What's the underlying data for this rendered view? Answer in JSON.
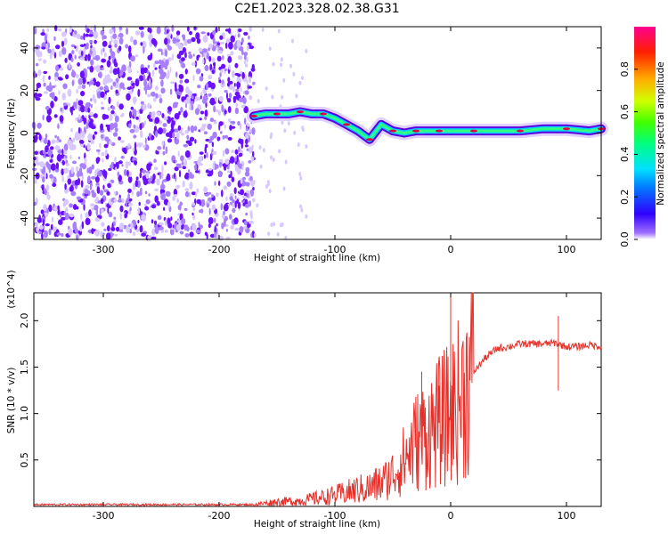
{
  "title": "C2E1.2023.328.02.38.G31",
  "colors": {
    "snr_line": "#e8302a",
    "track_outer": "#5a00e0",
    "track_inner": "#00d0ff",
    "track_core": "#e0004a",
    "noise": "#7a2cff"
  },
  "chart_data": [
    {
      "type": "heatmap",
      "title": "C2E1.2023.328.02.38.G31",
      "xlabel": "Height of straight line (km)",
      "ylabel": "Frequency (Hz)",
      "xlim": [
        -360,
        130
      ],
      "ylim": [
        -50,
        50
      ],
      "x_ticks": [
        -300,
        -200,
        -100,
        0,
        100
      ],
      "x_tick_labels": [
        "-300",
        "-200",
        "-100",
        "0",
        "100"
      ],
      "y_ticks": [
        -40,
        -20,
        0,
        20,
        40
      ],
      "y_tick_labels": [
        "-40",
        "-20",
        "0",
        "20",
        "40"
      ],
      "colorbar": {
        "label": "Normalized spectral amplitude",
        "range": [
          0,
          1
        ],
        "ticks": [
          0.0,
          0.2,
          0.4,
          0.6,
          0.8
        ],
        "tick_labels": [
          "0.0",
          "0.2",
          "0.4",
          "0.6",
          "0.8"
        ],
        "colormap": "rainbow"
      },
      "noise_region_x": [
        -360,
        -170
      ],
      "trace": {
        "x": [
          -170,
          -160,
          -150,
          -140,
          -130,
          -120,
          -110,
          -100,
          -90,
          -80,
          -70,
          -60,
          -50,
          -40,
          -30,
          -20,
          -10,
          0,
          20,
          40,
          60,
          80,
          100,
          120,
          130
        ],
        "freq": [
          8,
          9,
          9,
          9,
          10,
          9,
          9,
          7,
          4,
          1,
          -3,
          4,
          1,
          0,
          1,
          1,
          1,
          1,
          1,
          1,
          1,
          2,
          2,
          1,
          2
        ]
      },
      "grid": false
    },
    {
      "type": "line",
      "xlabel": "Height of straight line (km)",
      "ylabel": "SNR (10 * v/v)",
      "y_scale_label": "(x10^4)",
      "xlim": [
        -360,
        130
      ],
      "ylim": [
        0,
        2.3
      ],
      "x_ticks": [
        -300,
        -200,
        -100,
        0,
        100
      ],
      "x_tick_labels": [
        "-300",
        "-200",
        "-100",
        "0",
        "100"
      ],
      "y_ticks": [
        0.5,
        1.0,
        1.5,
        2.0
      ],
      "y_tick_labels": [
        "0.5",
        "1.0",
        "1.5",
        "2.0"
      ],
      "series": [
        {
          "x": [
            -360,
            -300,
            -250,
            -200,
            -170,
            -150,
            -130,
            -120,
            -110,
            -100,
            -90,
            -80,
            -70,
            -60,
            -50,
            -40,
            -30,
            -20,
            -10,
            0,
            10,
            20,
            30,
            40,
            50,
            60,
            70,
            80,
            90,
            100,
            110,
            120,
            130
          ],
          "y": [
            0.02,
            0.02,
            0.02,
            0.02,
            0.02,
            0.05,
            0.06,
            0.08,
            0.1,
            0.12,
            0.15,
            0.18,
            0.2,
            0.25,
            0.35,
            0.5,
            0.7,
            0.8,
            0.9,
            1.0,
            1.2,
            1.45,
            1.6,
            1.7,
            1.72,
            1.75,
            1.75,
            1.75,
            1.76,
            1.72,
            1.72,
            1.74,
            1.72
          ],
          "spikes": [
            {
              "x": 0,
              "y": 2.3
            },
            {
              "x": 93,
              "y": 2.05
            },
            {
              "x": 93,
              "y": 1.25
            },
            {
              "x": -25,
              "y": 1.45
            },
            {
              "x": -10,
              "y": 1.3
            }
          ]
        }
      ],
      "grid": false
    }
  ]
}
